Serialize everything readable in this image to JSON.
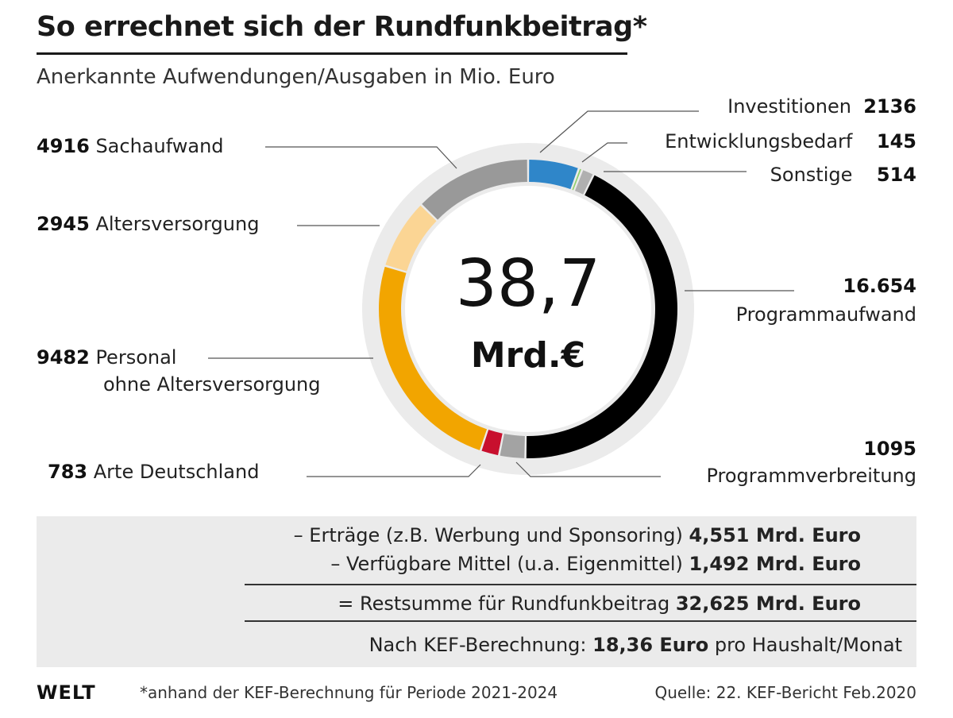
{
  "header": {
    "title": "So errechnet sich der Rundfunkbeitrag*",
    "subtitle": "Anerkannte Aufwendungen/Ausgaben in Mio. Euro"
  },
  "center": {
    "value": "38,7",
    "unit": "Mrd.€"
  },
  "chart_data": {
    "type": "pie",
    "variant": "donut",
    "title": "So errechnet sich der Rundfunkbeitrag*",
    "subtitle": "Anerkannte Aufwendungen/Ausgaben in Mio. Euro",
    "total_label": "38,7 Mrd.€",
    "slices": [
      {
        "name": "Investitionen",
        "value": 2136,
        "value_label": "2136",
        "color": "#2f86c9"
      },
      {
        "name": "Entwicklungsbedarf",
        "value": 145,
        "value_label": "145",
        "color": "#8fd16a"
      },
      {
        "name": "Sonstige",
        "value": 514,
        "value_label": "514",
        "color": "#b0b0b0"
      },
      {
        "name": "Programmaufwand",
        "value": 16654,
        "value_label": "16.654",
        "color": "#000000"
      },
      {
        "name": "Programmverbreitung",
        "value": 1095,
        "value_label": "1095",
        "color": "#a3a3a3"
      },
      {
        "name": "Arte Deutschland",
        "value": 783,
        "value_label": "783",
        "color": "#c8102e"
      },
      {
        "name": "Personal ohne Altersversorgung",
        "value": 9482,
        "value_label": "9482",
        "color": "#f2a500"
      },
      {
        "name": "Altersversorgung",
        "value": 2945,
        "value_label": "2945",
        "color": "#fbd594"
      },
      {
        "name": "Sachaufwand",
        "value": 4916,
        "value_label": "4916",
        "color": "#999999"
      }
    ],
    "ring_background": "#ebebeb"
  },
  "labels": {
    "investitionen": {
      "name": "Investitionen",
      "value": "2136"
    },
    "entwicklungsbedarf": {
      "name": "Entwicklungsbedarf",
      "value": "145"
    },
    "sonstige": {
      "name": "Sonstige",
      "value": "514"
    },
    "programmaufwand": {
      "name": "Programmaufwand",
      "value": "16.654"
    },
    "programmverbreitung": {
      "name": "Programmverbreitung",
      "value": "1095"
    },
    "arte": {
      "name": "Arte Deutschland",
      "value": "783"
    },
    "personal": {
      "name_line1": "Personal",
      "name_line2": "ohne Altersversorgung",
      "value": "9482"
    },
    "altersversorgung": {
      "name": "Altersversorgung",
      "value": "2945"
    },
    "sachaufwand": {
      "name": "Sachaufwand",
      "value": "4916"
    }
  },
  "summary": {
    "line1_text": "– Erträge (z.B. Werbung und Sponsoring)",
    "line1_value": "4,551 Mrd. Euro",
    "line2_text": "– Verfügbare Mittel (u.a. Eigenmittel)",
    "line2_value": "1,492 Mrd. Euro",
    "line3_text": "= Restsumme für Rundfunkbeitrag",
    "line3_value": "32,625 Mrd. Euro",
    "line4_prefix": "Nach KEF-Berechnung:",
    "line4_value": "18,36 Euro",
    "line4_suffix": "pro Haushalt/Monat"
  },
  "footer": {
    "brand": "WELT",
    "footnote": "*anhand der KEF-Berechnung für Periode 2021-2024",
    "source": "Quelle: 22. KEF-Bericht Feb.2020"
  }
}
